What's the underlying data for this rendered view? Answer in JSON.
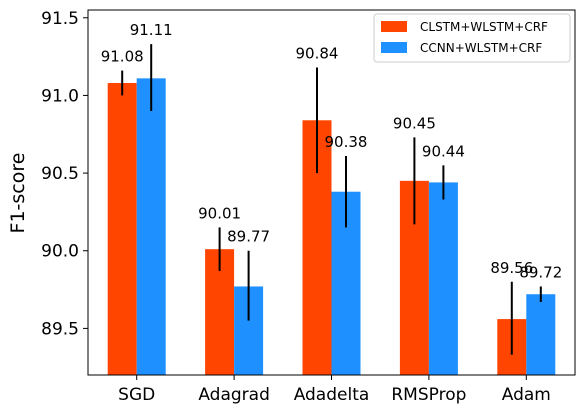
{
  "chart_data": {
    "type": "bar",
    "title": "",
    "xlabel": "",
    "ylabel": "F1-score",
    "ylim": [
      89.2,
      91.55
    ],
    "yticks": [
      "89.5",
      "90.0",
      "90.5",
      "91.0",
      "91.5"
    ],
    "categories": [
      "SGD",
      "Adagrad",
      "Adadelta",
      "RMSProp",
      "Adam"
    ],
    "legend_position": "top-right",
    "grid": false,
    "series": [
      {
        "name": "CLSTM+WLSTM+CRF",
        "color": "#ff4500",
        "values": [
          91.08,
          90.01,
          90.84,
          90.45,
          89.56
        ],
        "labels": [
          "91.08",
          "90.01",
          "90.84",
          "90.45",
          "89.56"
        ],
        "error_low": [
          91.0,
          89.87,
          90.5,
          90.17,
          89.33
        ],
        "error_high": [
          91.16,
          90.15,
          91.18,
          90.73,
          89.8
        ]
      },
      {
        "name": "CCNN+WLSTM+CRF",
        "color": "#1e90ff",
        "values": [
          91.11,
          89.77,
          90.38,
          90.44,
          89.72
        ],
        "labels": [
          "91.11",
          "89.77",
          "90.38",
          "90.44",
          "89.72"
        ],
        "error_low": [
          90.9,
          89.55,
          90.15,
          90.33,
          89.67
        ],
        "error_high": [
          91.33,
          90.0,
          90.61,
          90.55,
          89.77
        ]
      }
    ]
  }
}
